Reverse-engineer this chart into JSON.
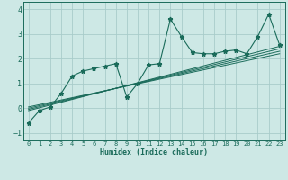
{
  "xlabel": "Humidex (Indice chaleur)",
  "ylabel": "",
  "xlim": [
    -0.5,
    23.5
  ],
  "ylim": [
    -1.3,
    4.3
  ],
  "yticks": [
    -1,
    0,
    1,
    2,
    3,
    4
  ],
  "xticks": [
    0,
    1,
    2,
    3,
    4,
    5,
    6,
    7,
    8,
    9,
    10,
    11,
    12,
    13,
    14,
    15,
    16,
    17,
    18,
    19,
    20,
    21,
    22,
    23
  ],
  "bg_color": "#cde8e5",
  "grid_color": "#a8ccca",
  "line_color": "#1a6b5a",
  "main_series_x": [
    0,
    1,
    2,
    3,
    4,
    5,
    6,
    7,
    8,
    9,
    10,
    11,
    12,
    13,
    14,
    15,
    16,
    17,
    18,
    19,
    20,
    21,
    22,
    23
  ],
  "main_series_y": [
    -0.6,
    -0.1,
    0.05,
    0.6,
    1.3,
    1.5,
    1.6,
    1.7,
    1.8,
    0.45,
    1.0,
    1.75,
    1.8,
    3.6,
    2.9,
    2.25,
    2.2,
    2.2,
    2.3,
    2.35,
    2.2,
    2.9,
    3.8,
    2.55
  ],
  "reg_lines": [
    {
      "x": [
        0,
        23
      ],
      "y": [
        -0.1,
        2.5
      ]
    },
    {
      "x": [
        0,
        23
      ],
      "y": [
        -0.05,
        2.4
      ]
    },
    {
      "x": [
        0,
        23
      ],
      "y": [
        0.0,
        2.3
      ]
    },
    {
      "x": [
        0,
        23
      ],
      "y": [
        0.05,
        2.2
      ]
    }
  ]
}
